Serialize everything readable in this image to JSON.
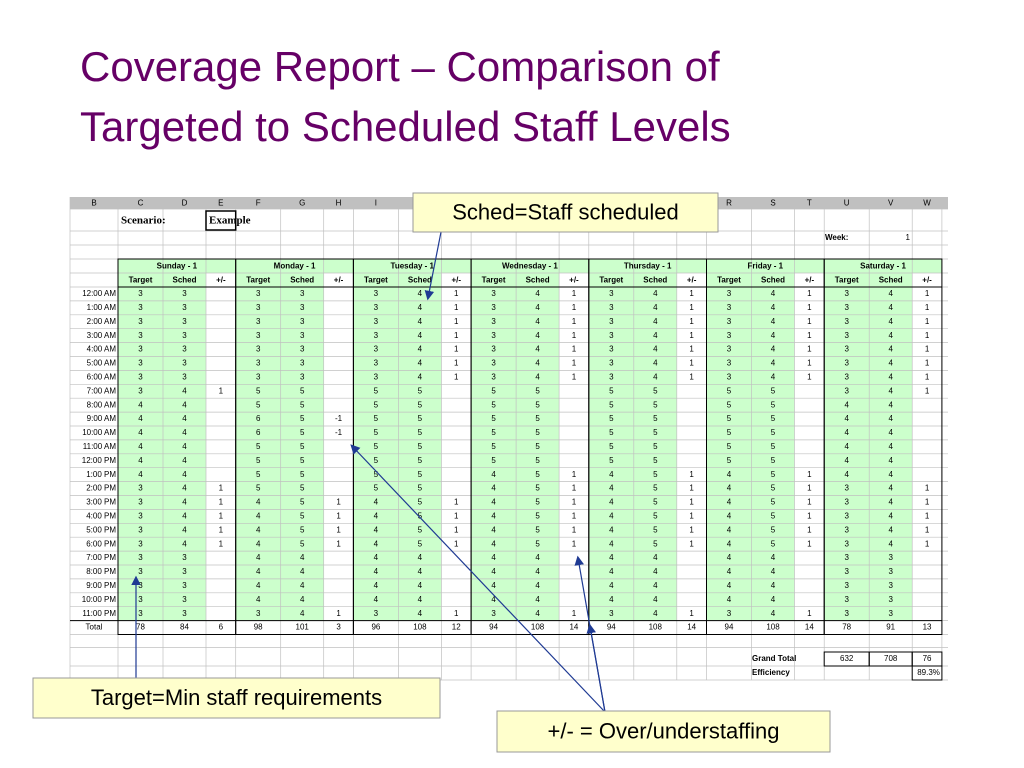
{
  "title": {
    "line1": "Coverage Report – Comparison of",
    "line2": "Targeted to Scheduled Staff Levels"
  },
  "sheet": {
    "column_letters": [
      "B",
      "C",
      "D",
      "E",
      "F",
      "G",
      "H",
      "I",
      "R",
      "S",
      "T",
      "U",
      "V",
      "W"
    ],
    "scenario_label": "Scenario:",
    "scenario_value": "Example",
    "week_label": "Week:",
    "week_value": 1,
    "days": [
      "Sunday - 1",
      "Monday - 1",
      "Tuesday - 1",
      "Wednesday - 1",
      "Thursday - 1",
      "Friday - 1",
      "Saturday - 1"
    ],
    "subheaders": [
      "Target",
      "Sched",
      "+/-"
    ],
    "rows": [
      {
        "time": "12:00 AM",
        "cells": [
          3,
          3,
          null,
          3,
          3,
          null,
          3,
          4,
          1,
          3,
          4,
          1,
          3,
          4,
          1,
          3,
          4,
          1,
          3,
          4,
          1
        ]
      },
      {
        "time": "1:00 AM",
        "cells": [
          3,
          3,
          null,
          3,
          3,
          null,
          3,
          4,
          1,
          3,
          4,
          1,
          3,
          4,
          1,
          3,
          4,
          1,
          3,
          4,
          1
        ]
      },
      {
        "time": "2:00 AM",
        "cells": [
          3,
          3,
          null,
          3,
          3,
          null,
          3,
          4,
          1,
          3,
          4,
          1,
          3,
          4,
          1,
          3,
          4,
          1,
          3,
          4,
          1
        ]
      },
      {
        "time": "3:00 AM",
        "cells": [
          3,
          3,
          null,
          3,
          3,
          null,
          3,
          4,
          1,
          3,
          4,
          1,
          3,
          4,
          1,
          3,
          4,
          1,
          3,
          4,
          1
        ]
      },
      {
        "time": "4:00 AM",
        "cells": [
          3,
          3,
          null,
          3,
          3,
          null,
          3,
          4,
          1,
          3,
          4,
          1,
          3,
          4,
          1,
          3,
          4,
          1,
          3,
          4,
          1
        ]
      },
      {
        "time": "5:00 AM",
        "cells": [
          3,
          3,
          null,
          3,
          3,
          null,
          3,
          4,
          1,
          3,
          4,
          1,
          3,
          4,
          1,
          3,
          4,
          1,
          3,
          4,
          1
        ]
      },
      {
        "time": "6:00 AM",
        "cells": [
          3,
          3,
          null,
          3,
          3,
          null,
          3,
          4,
          1,
          3,
          4,
          1,
          3,
          4,
          1,
          3,
          4,
          1,
          3,
          4,
          1
        ]
      },
      {
        "time": "7:00 AM",
        "cells": [
          3,
          4,
          1,
          5,
          5,
          null,
          5,
          5,
          null,
          5,
          5,
          null,
          5,
          5,
          null,
          5,
          5,
          null,
          3,
          4,
          1
        ]
      },
      {
        "time": "8:00 AM",
        "cells": [
          4,
          4,
          null,
          5,
          5,
          null,
          5,
          5,
          null,
          5,
          5,
          null,
          5,
          5,
          null,
          5,
          5,
          null,
          4,
          4,
          null
        ]
      },
      {
        "time": "9:00 AM",
        "cells": [
          4,
          4,
          null,
          6,
          5,
          -1,
          5,
          5,
          null,
          5,
          5,
          null,
          5,
          5,
          null,
          5,
          5,
          null,
          4,
          4,
          null
        ]
      },
      {
        "time": "10:00 AM",
        "cells": [
          4,
          4,
          null,
          6,
          5,
          -1,
          5,
          5,
          null,
          5,
          5,
          null,
          5,
          5,
          null,
          5,
          5,
          null,
          4,
          4,
          null
        ]
      },
      {
        "time": "11:00 AM",
        "cells": [
          4,
          4,
          null,
          5,
          5,
          null,
          5,
          5,
          null,
          5,
          5,
          null,
          5,
          5,
          null,
          5,
          5,
          null,
          4,
          4,
          null
        ]
      },
      {
        "time": "12:00 PM",
        "cells": [
          4,
          4,
          null,
          5,
          5,
          null,
          5,
          5,
          null,
          5,
          5,
          null,
          5,
          5,
          null,
          5,
          5,
          null,
          4,
          4,
          null
        ]
      },
      {
        "time": "1:00 PM",
        "cells": [
          4,
          4,
          null,
          5,
          5,
          null,
          5,
          5,
          null,
          4,
          5,
          1,
          4,
          5,
          1,
          4,
          5,
          1,
          4,
          4,
          null
        ]
      },
      {
        "time": "2:00 PM",
        "cells": [
          3,
          4,
          1,
          5,
          5,
          null,
          5,
          5,
          null,
          4,
          5,
          1,
          4,
          5,
          1,
          4,
          5,
          1,
          3,
          4,
          1
        ]
      },
      {
        "time": "3:00 PM",
        "cells": [
          3,
          4,
          1,
          4,
          5,
          1,
          4,
          5,
          1,
          4,
          5,
          1,
          4,
          5,
          1,
          4,
          5,
          1,
          3,
          4,
          1
        ]
      },
      {
        "time": "4:00 PM",
        "cells": [
          3,
          4,
          1,
          4,
          5,
          1,
          4,
          5,
          1,
          4,
          5,
          1,
          4,
          5,
          1,
          4,
          5,
          1,
          3,
          4,
          1
        ]
      },
      {
        "time": "5:00 PM",
        "cells": [
          3,
          4,
          1,
          4,
          5,
          1,
          4,
          5,
          1,
          4,
          5,
          1,
          4,
          5,
          1,
          4,
          5,
          1,
          3,
          4,
          1
        ]
      },
      {
        "time": "6:00 PM",
        "cells": [
          3,
          4,
          1,
          4,
          5,
          1,
          4,
          5,
          1,
          4,
          5,
          1,
          4,
          5,
          1,
          4,
          5,
          1,
          3,
          4,
          1
        ]
      },
      {
        "time": "7:00 PM",
        "cells": [
          3,
          3,
          null,
          4,
          4,
          null,
          4,
          4,
          null,
          4,
          4,
          null,
          4,
          4,
          null,
          4,
          4,
          null,
          3,
          3,
          null
        ]
      },
      {
        "time": "8:00 PM",
        "cells": [
          3,
          3,
          null,
          4,
          4,
          null,
          4,
          4,
          null,
          4,
          4,
          null,
          4,
          4,
          null,
          4,
          4,
          null,
          3,
          3,
          null
        ]
      },
      {
        "time": "9:00 PM",
        "cells": [
          3,
          3,
          null,
          4,
          4,
          null,
          4,
          4,
          null,
          4,
          4,
          null,
          4,
          4,
          null,
          4,
          4,
          null,
          3,
          3,
          null
        ]
      },
      {
        "time": "10:00 PM",
        "cells": [
          3,
          3,
          null,
          4,
          4,
          null,
          4,
          4,
          null,
          4,
          4,
          null,
          4,
          4,
          null,
          4,
          4,
          null,
          3,
          3,
          null
        ]
      },
      {
        "time": "11:00 PM",
        "cells": [
          3,
          3,
          null,
          3,
          4,
          1,
          3,
          4,
          1,
          3,
          4,
          1,
          3,
          4,
          1,
          3,
          4,
          1,
          3,
          3,
          null
        ]
      }
    ],
    "total": {
      "label": "Total",
      "cells": [
        78,
        84,
        6,
        98,
        101,
        3,
        96,
        108,
        12,
        94,
        108,
        14,
        94,
        108,
        14,
        94,
        108,
        14,
        78,
        91,
        13
      ]
    },
    "grand_total": {
      "label": "Grand Total",
      "values": [
        632,
        708,
        76
      ]
    },
    "efficiency": {
      "label": "Efficiency",
      "value": "89.3%"
    }
  },
  "callouts": {
    "sched": "Sched=Staff scheduled",
    "target": "Target=Min staff requirements",
    "diff": "+/- = Over/understaffing"
  }
}
